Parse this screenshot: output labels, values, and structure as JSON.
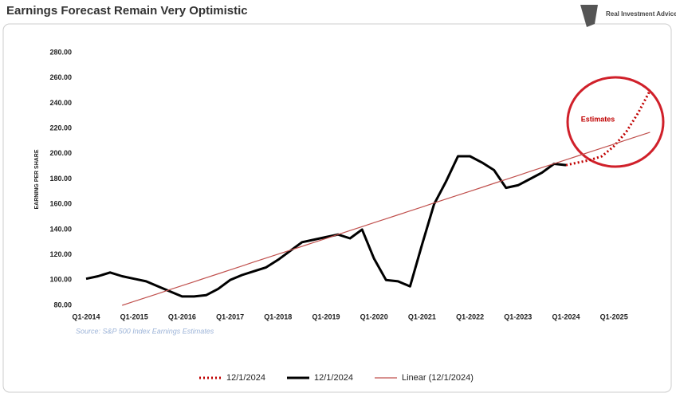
{
  "chart_data": {
    "type": "line",
    "title": "Earnings Forecast Remain Very Optimistic",
    "logo": "Real Investment Advice",
    "ylabel": "EARNING PER SHARE",
    "source": "Source: S&P 500 Index Earnings Estimates",
    "annotation": "Estimates",
    "categories": [
      "Q1-2014",
      null,
      null,
      null,
      "Q1-2015",
      null,
      null,
      null,
      "Q1-2016",
      null,
      null,
      null,
      "Q1-2017",
      null,
      null,
      null,
      "Q1-2018",
      null,
      null,
      null,
      "Q1-2019",
      null,
      null,
      null,
      "Q1-2020",
      null,
      null,
      null,
      "Q1-2021",
      null,
      null,
      null,
      "Q1-2022",
      null,
      null,
      null,
      "Q1-2023",
      null,
      null,
      null,
      "Q1-2024",
      null,
      null,
      null,
      "Q1-2025",
      null,
      null,
      null
    ],
    "series": [
      {
        "name": "12/1/2024",
        "color": "#c00000",
        "line_style": "dotted",
        "values": [
          null,
          null,
          null,
          null,
          null,
          null,
          null,
          null,
          null,
          null,
          null,
          null,
          null,
          null,
          null,
          null,
          null,
          null,
          null,
          null,
          null,
          null,
          null,
          null,
          null,
          null,
          null,
          null,
          null,
          null,
          null,
          null,
          null,
          null,
          null,
          null,
          null,
          null,
          null,
          null,
          191,
          193,
          195,
          198,
          206,
          217,
          232,
          250
        ]
      },
      {
        "name": "12/1/2024",
        "color": "#000000",
        "line_style": "solid",
        "values": [
          101,
          103,
          106,
          103,
          101,
          99,
          95,
          91,
          87,
          87,
          88,
          93,
          100,
          104,
          107,
          110,
          116,
          123,
          130,
          132,
          134,
          136,
          133,
          140,
          117,
          100,
          99,
          95,
          128,
          160,
          178,
          198,
          198,
          193,
          187,
          173,
          175,
          180,
          185,
          192,
          191,
          null,
          null,
          null,
          null,
          null,
          null,
          null
        ]
      },
      {
        "name": "Linear (12/1/2024)",
        "color": "#c0504d",
        "line_style": "thin",
        "values": [
          null,
          null,
          null,
          80.0,
          83.1,
          86.2,
          89.3,
          92.5,
          95.6,
          98.7,
          101.8,
          104.9,
          108.0,
          111.1,
          114.3,
          117.4,
          120.5,
          123.6,
          126.7,
          129.8,
          132.9,
          136.0,
          139.2,
          142.3,
          145.4,
          148.5,
          151.6,
          154.7,
          157.8,
          161.0,
          164.1,
          167.2,
          170.3,
          173.4,
          176.5,
          179.6,
          182.7,
          185.9,
          189.0,
          192.1,
          195.2,
          198.3,
          201.4,
          204.5,
          207.6,
          210.8,
          213.9,
          217.0
        ]
      }
    ],
    "ylim": [
      80,
      280
    ],
    "yticks": [
      {
        "value": 80,
        "label": "80.00"
      },
      {
        "value": 100,
        "label": "100.00"
      },
      {
        "value": 120,
        "label": "120.00"
      },
      {
        "value": 140,
        "label": "140.00"
      },
      {
        "value": 160,
        "label": "160.00"
      },
      {
        "value": 180,
        "label": "180.00"
      },
      {
        "value": 200,
        "label": "200.00"
      },
      {
        "value": 220,
        "label": "220.00"
      },
      {
        "value": 240,
        "label": "240.00"
      },
      {
        "value": 260,
        "label": "260.00"
      },
      {
        "value": 280,
        "label": "280.00"
      }
    ],
    "grid": false
  }
}
